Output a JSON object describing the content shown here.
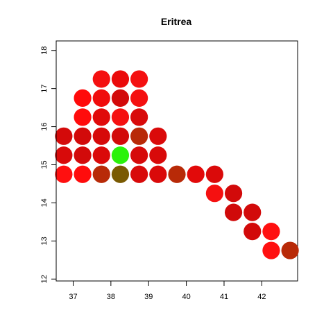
{
  "chart_data": {
    "type": "scatter",
    "title": "Eritrea",
    "xlabel": "",
    "ylabel": "",
    "xlim": [
      36.55,
      42.95
    ],
    "ylim": [
      11.95,
      18.25
    ],
    "xticks": [
      37,
      38,
      39,
      40,
      41,
      42
    ],
    "yticks": [
      12,
      13,
      14,
      15,
      16,
      17,
      18
    ],
    "grid": false,
    "legend": "none",
    "points": [
      {
        "x": 37.75,
        "y": 17.25,
        "color": "#F41010"
      },
      {
        "x": 38.25,
        "y": 17.25,
        "color": "#EA0A0A"
      },
      {
        "x": 38.75,
        "y": 17.25,
        "color": "#F41010"
      },
      {
        "x": 37.25,
        "y": 16.75,
        "color": "#FF0A0A"
      },
      {
        "x": 37.75,
        "y": 16.75,
        "color": "#F00C0C"
      },
      {
        "x": 38.25,
        "y": 16.75,
        "color": "#D20A0A"
      },
      {
        "x": 38.75,
        "y": 16.75,
        "color": "#F41010"
      },
      {
        "x": 37.25,
        "y": 16.25,
        "color": "#FF0C0C"
      },
      {
        "x": 37.75,
        "y": 16.25,
        "color": "#E00A0A"
      },
      {
        "x": 38.25,
        "y": 16.25,
        "color": "#F51010"
      },
      {
        "x": 38.75,
        "y": 16.25,
        "color": "#D80A0A"
      },
      {
        "x": 36.75,
        "y": 15.75,
        "color": "#D40A0A"
      },
      {
        "x": 37.25,
        "y": 15.75,
        "color": "#D20A0A"
      },
      {
        "x": 37.75,
        "y": 15.75,
        "color": "#D60A0A"
      },
      {
        "x": 38.25,
        "y": 15.75,
        "color": "#D20A0A"
      },
      {
        "x": 38.75,
        "y": 15.75,
        "color": "#B82A08"
      },
      {
        "x": 39.25,
        "y": 15.75,
        "color": "#DA0A0A"
      },
      {
        "x": 36.75,
        "y": 15.25,
        "color": "#D80A0A"
      },
      {
        "x": 37.25,
        "y": 15.25,
        "color": "#D20A0A"
      },
      {
        "x": 37.75,
        "y": 15.25,
        "color": "#DA0A0A"
      },
      {
        "x": 38.25,
        "y": 15.25,
        "color": "#2AF20A"
      },
      {
        "x": 38.75,
        "y": 15.25,
        "color": "#D60A0A"
      },
      {
        "x": 39.25,
        "y": 15.25,
        "color": "#D80A0A"
      },
      {
        "x": 36.75,
        "y": 14.75,
        "color": "#FF1010"
      },
      {
        "x": 37.25,
        "y": 14.75,
        "color": "#FF0C0C"
      },
      {
        "x": 37.75,
        "y": 14.75,
        "color": "#B82A08"
      },
      {
        "x": 38.25,
        "y": 14.75,
        "color": "#7A5A02"
      },
      {
        "x": 38.75,
        "y": 14.75,
        "color": "#D80A0A"
      },
      {
        "x": 39.25,
        "y": 14.75,
        "color": "#DA0A0A"
      },
      {
        "x": 39.75,
        "y": 14.75,
        "color": "#B82A08"
      },
      {
        "x": 40.25,
        "y": 14.75,
        "color": "#E20A0A"
      },
      {
        "x": 40.75,
        "y": 14.75,
        "color": "#DA0A0A"
      },
      {
        "x": 40.75,
        "y": 14.25,
        "color": "#F51010"
      },
      {
        "x": 41.25,
        "y": 14.25,
        "color": "#D20A0A"
      },
      {
        "x": 41.25,
        "y": 13.75,
        "color": "#D00A0A"
      },
      {
        "x": 41.75,
        "y": 13.75,
        "color": "#D20A0A"
      },
      {
        "x": 41.75,
        "y": 13.25,
        "color": "#D20A0A"
      },
      {
        "x": 42.25,
        "y": 13.25,
        "color": "#FF1010"
      },
      {
        "x": 42.25,
        "y": 12.75,
        "color": "#FF1010"
      },
      {
        "x": 42.75,
        "y": 12.75,
        "color": "#B82A08"
      }
    ]
  }
}
